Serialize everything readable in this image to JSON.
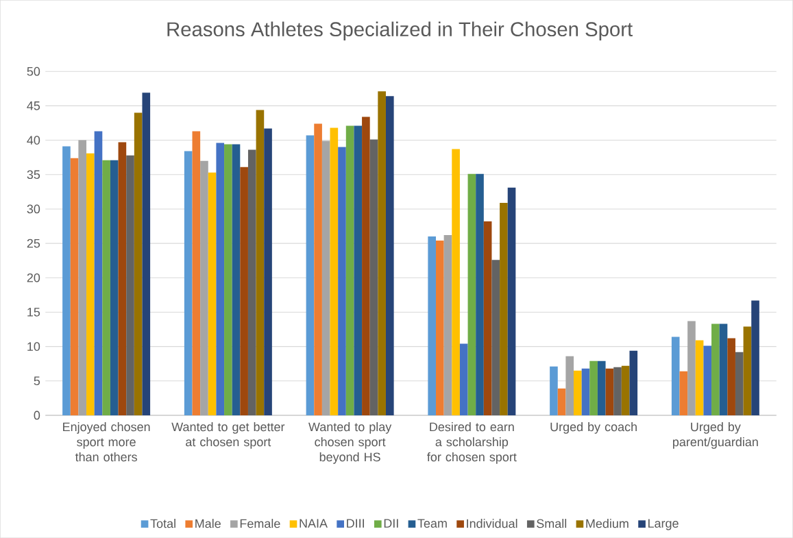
{
  "chart_data": {
    "type": "bar",
    "title": "Reasons Athletes Specialized in Their Chosen Sport",
    "categories": [
      "Enjoyed chosen sport more than others",
      "Wanted to get better at chosen sport",
      "Wanted to play chosen sport beyond HS",
      "Desired to earn a scholarship for chosen sport",
      "Urged by coach",
      "Urged by parent/guardian"
    ],
    "series": [
      {
        "name": "Total",
        "color": "#5b9bd5",
        "values": [
          39.1,
          38.4,
          40.7,
          26.0,
          7.1,
          11.4
        ]
      },
      {
        "name": "Male",
        "color": "#ed7d31",
        "values": [
          37.4,
          41.3,
          42.4,
          25.4,
          3.9,
          6.4
        ]
      },
      {
        "name": "Female",
        "color": "#a5a5a5",
        "values": [
          40.0,
          37.0,
          39.9,
          26.2,
          8.6,
          13.7
        ]
      },
      {
        "name": "NAIA",
        "color": "#ffc000",
        "values": [
          38.1,
          35.3,
          41.8,
          38.7,
          6.5,
          10.9
        ]
      },
      {
        "name": "DIII",
        "color": "#4472c4",
        "values": [
          41.3,
          39.6,
          39.0,
          10.4,
          6.8,
          10.1
        ]
      },
      {
        "name": "DII",
        "color": "#70ad47",
        "values": [
          37.1,
          39.4,
          42.1,
          35.1,
          7.9,
          13.3
        ]
      },
      {
        "name": "Team",
        "color": "#255e91",
        "values": [
          37.1,
          39.4,
          42.1,
          35.1,
          7.9,
          13.3
        ]
      },
      {
        "name": "Individual",
        "color": "#9e480e",
        "values": [
          39.7,
          36.1,
          43.4,
          28.2,
          6.8,
          11.2
        ]
      },
      {
        "name": "Small",
        "color": "#636363",
        "values": [
          37.8,
          38.6,
          40.1,
          22.6,
          7.0,
          9.2
        ]
      },
      {
        "name": "Medium",
        "color": "#997300",
        "values": [
          44.0,
          44.4,
          47.1,
          30.9,
          7.2,
          12.9
        ]
      },
      {
        "name": "Large",
        "color": "#264478",
        "values": [
          46.9,
          41.7,
          46.4,
          33.1,
          9.4,
          16.7
        ]
      }
    ],
    "ylim": [
      0,
      50
    ],
    "yticks": [
      0,
      5,
      10,
      15,
      20,
      25,
      30,
      35,
      40,
      45,
      50
    ],
    "grid": "y",
    "legend": "bottom"
  }
}
